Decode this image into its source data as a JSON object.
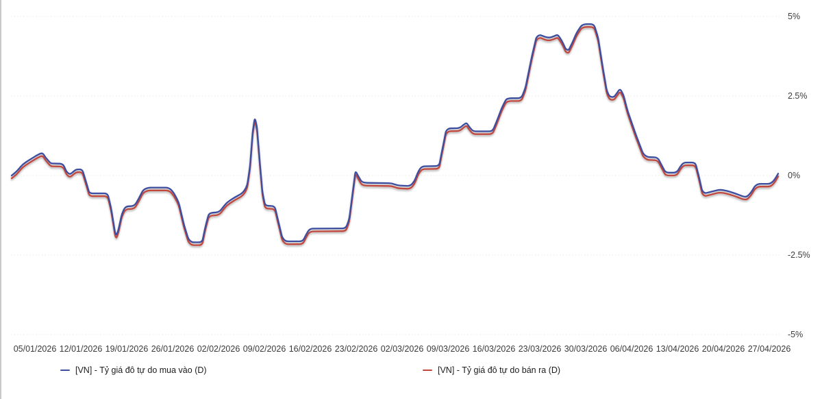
{
  "chart_data": {
    "type": "line",
    "title": "",
    "x_tick_labels": [
      "05/01/2026",
      "12/01/2026",
      "19/01/2026",
      "26/01/2026",
      "02/02/2026",
      "09/02/2026",
      "16/02/2026",
      "23/02/2026",
      "02/03/2026",
      "09/03/2026",
      "16/03/2026",
      "23/03/2026",
      "30/03/2026",
      "06/04/2026",
      "13/04/2026",
      "20/04/2026",
      "27/04/2026"
    ],
    "y_ticks": [
      {
        "label": "5%",
        "value": 5
      },
      {
        "label": "2.5%",
        "value": 2.5
      },
      {
        "label": "0%",
        "value": 0
      },
      {
        "label": "-2.5%",
        "value": -2.5
      },
      {
        "label": "-5%",
        "value": -5
      }
    ],
    "ylim": [
      -5.5,
      5.6
    ],
    "grid": "horizontal-dotted",
    "legend_position": "bottom",
    "series": [
      {
        "name": "[VN] - Tỷ giá đô tự do mua vào (D)",
        "color": "#3d4da0",
        "value_offset_pct": 0
      },
      {
        "name": "[VN] - Tỷ giá đô tự do bán ra (D)",
        "color": "#c2463e",
        "value_offset_pct": -0.09
      }
    ],
    "points": [
      [
        17,
        0.0
      ],
      [
        24,
        0.12
      ],
      [
        33,
        0.35
      ],
      [
        45,
        0.52
      ],
      [
        55,
        0.65
      ],
      [
        62,
        0.72
      ],
      [
        67,
        0.55
      ],
      [
        73,
        0.41
      ],
      [
        75,
        0.38
      ],
      [
        92,
        0.37
      ],
      [
        97,
        0.12
      ],
      [
        102,
        0.03
      ],
      [
        107,
        0.12
      ],
      [
        111,
        0.19
      ],
      [
        120,
        0.2
      ],
      [
        125,
        -0.15
      ],
      [
        130,
        -0.52
      ],
      [
        133,
        -0.56
      ],
      [
        157,
        -0.56
      ],
      [
        162,
        -1.0
      ],
      [
        168,
        -1.8
      ],
      [
        170,
        -1.88
      ],
      [
        173,
        -1.7
      ],
      [
        178,
        -1.2
      ],
      [
        183,
        -0.97
      ],
      [
        196,
        -0.96
      ],
      [
        202,
        -0.75
      ],
      [
        209,
        -0.45
      ],
      [
        216,
        -0.38
      ],
      [
        247,
        -0.38
      ],
      [
        254,
        -0.55
      ],
      [
        261,
        -0.85
      ],
      [
        268,
        -1.5
      ],
      [
        275,
        -2.0
      ],
      [
        280,
        -2.1
      ],
      [
        295,
        -2.1
      ],
      [
        300,
        -1.6
      ],
      [
        305,
        -1.18
      ],
      [
        320,
        -1.15
      ],
      [
        331,
        -0.85
      ],
      [
        343,
        -0.68
      ],
      [
        352,
        -0.58
      ],
      [
        357,
        -0.47
      ],
      [
        361,
        -0.3
      ],
      [
        365,
        0.3
      ],
      [
        369,
        1.4
      ],
      [
        372,
        1.82
      ],
      [
        375,
        1.55
      ],
      [
        379,
        0.5
      ],
      [
        383,
        -0.5
      ],
      [
        387,
        -0.95
      ],
      [
        401,
        -0.96
      ],
      [
        407,
        -1.5
      ],
      [
        412,
        -1.95
      ],
      [
        417,
        -2.07
      ],
      [
        442,
        -2.07
      ],
      [
        447,
        -1.85
      ],
      [
        452,
        -1.67
      ],
      [
        505,
        -1.66
      ],
      [
        510,
        -1.35
      ],
      [
        515,
        -0.5
      ],
      [
        519,
        0.15
      ],
      [
        523,
        -0.02
      ],
      [
        528,
        -0.2
      ],
      [
        534,
        -0.23
      ],
      [
        572,
        -0.24
      ],
      [
        580,
        -0.31
      ],
      [
        599,
        -0.33
      ],
      [
        605,
        -0.18
      ],
      [
        611,
        0.15
      ],
      [
        616,
        0.29
      ],
      [
        641,
        0.3
      ],
      [
        646,
        0.85
      ],
      [
        651,
        1.4
      ],
      [
        655,
        1.48
      ],
      [
        671,
        1.49
      ],
      [
        677,
        1.6
      ],
      [
        681,
        1.66
      ],
      [
        686,
        1.5
      ],
      [
        691,
        1.39
      ],
      [
        719,
        1.39
      ],
      [
        725,
        1.7
      ],
      [
        733,
        2.15
      ],
      [
        739,
        2.4
      ],
      [
        744,
        2.43
      ],
      [
        761,
        2.43
      ],
      [
        767,
        2.75
      ],
      [
        776,
        3.7
      ],
      [
        783,
        4.35
      ],
      [
        788,
        4.43
      ],
      [
        795,
        4.36
      ],
      [
        802,
        4.33
      ],
      [
        809,
        4.38
      ],
      [
        814,
        4.43
      ],
      [
        820,
        4.25
      ],
      [
        826,
        3.97
      ],
      [
        830,
        3.94
      ],
      [
        835,
        4.15
      ],
      [
        842,
        4.5
      ],
      [
        849,
        4.72
      ],
      [
        854,
        4.76
      ],
      [
        867,
        4.76
      ],
      [
        873,
        4.35
      ],
      [
        880,
        3.4
      ],
      [
        886,
        2.65
      ],
      [
        890,
        2.48
      ],
      [
        896,
        2.46
      ],
      [
        901,
        2.6
      ],
      [
        905,
        2.73
      ],
      [
        910,
        2.55
      ],
      [
        916,
        2.05
      ],
      [
        928,
        1.3
      ],
      [
        939,
        0.68
      ],
      [
        945,
        0.58
      ],
      [
        960,
        0.57
      ],
      [
        966,
        0.32
      ],
      [
        971,
        0.12
      ],
      [
        975,
        0.09
      ],
      [
        988,
        0.09
      ],
      [
        993,
        0.28
      ],
      [
        998,
        0.41
      ],
      [
        1015,
        0.41
      ],
      [
        1020,
        0.0
      ],
      [
        1025,
        -0.48
      ],
      [
        1029,
        -0.56
      ],
      [
        1040,
        -0.5
      ],
      [
        1051,
        -0.44
      ],
      [
        1061,
        -0.48
      ],
      [
        1073,
        -0.56
      ],
      [
        1085,
        -0.66
      ],
      [
        1090,
        -0.67
      ],
      [
        1096,
        -0.55
      ],
      [
        1102,
        -0.33
      ],
      [
        1107,
        -0.26
      ],
      [
        1124,
        -0.26
      ],
      [
        1129,
        -0.18
      ],
      [
        1133,
        -0.05
      ],
      [
        1136,
        0.06
      ]
    ]
  },
  "colors": {
    "grid": "#e8e8e8",
    "axis_text": "#3a3a3a",
    "legend_text": "#1c1c1c"
  }
}
